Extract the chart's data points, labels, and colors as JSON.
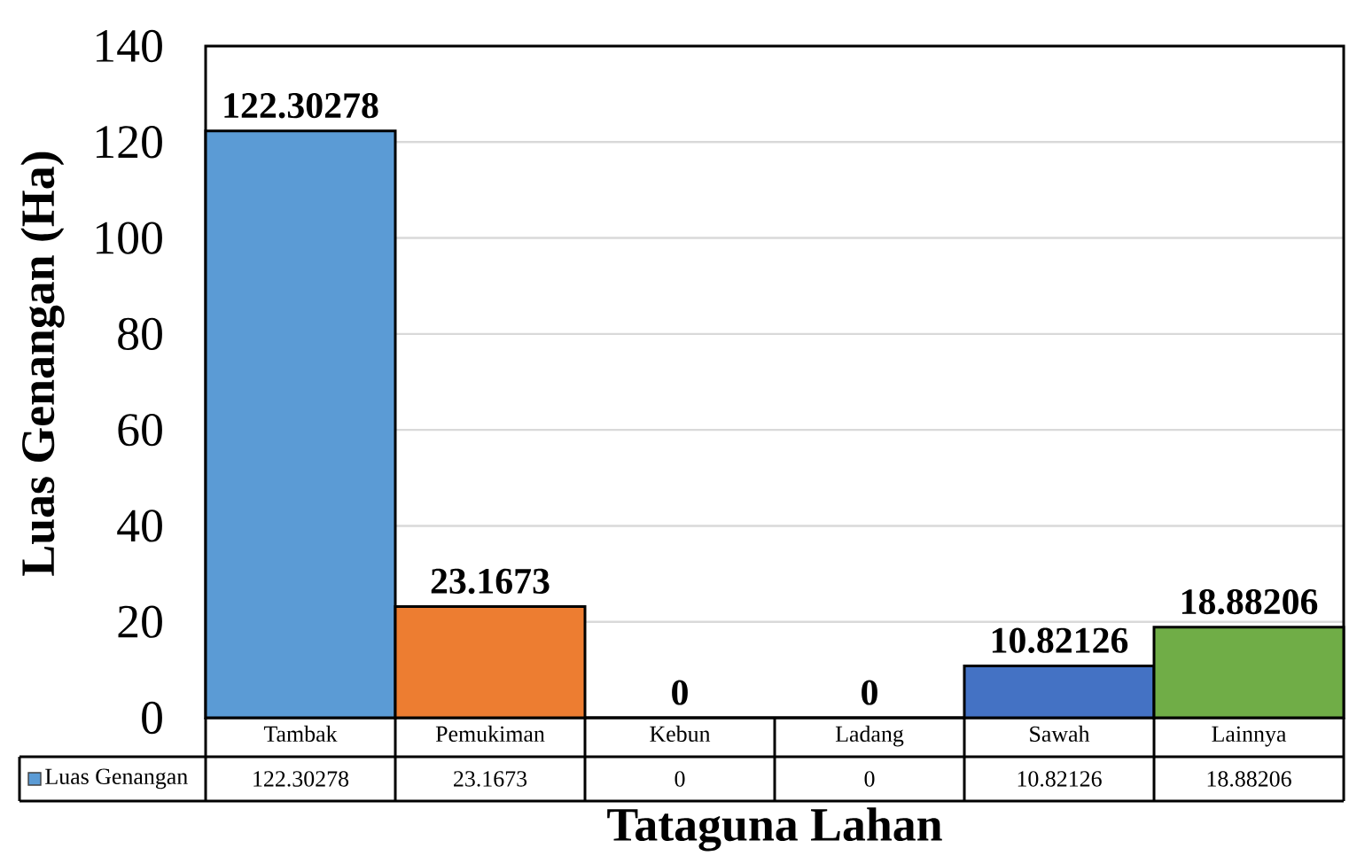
{
  "chart_data": {
    "type": "bar",
    "xlabel": "Tataguna Lahan",
    "ylabel": "Luas Genangan (Ha)",
    "categories": [
      "Tambak",
      "Pemukiman",
      "Kebun",
      "Ladang",
      "Sawah",
      "Lainnya"
    ],
    "series": [
      {
        "name": "Luas Genangan",
        "colors": [
          "#5b9bd5",
          "#ed7d31",
          "#a5a5a5",
          "#ffc000",
          "#4472c4",
          "#70ad47"
        ],
        "values": [
          122.30278,
          23.1673,
          0,
          0,
          10.82126,
          18.88206
        ]
      }
    ],
    "ylim": [
      0,
      140
    ],
    "yticks": [
      0,
      20,
      40,
      60,
      80,
      100,
      120,
      140
    ],
    "grid": "y",
    "legend": "bottom left",
    "data_labels": true,
    "annotations": [
      "122.30278",
      "23.1673",
      "0",
      "0",
      "10.82126",
      "18.88206"
    ]
  }
}
